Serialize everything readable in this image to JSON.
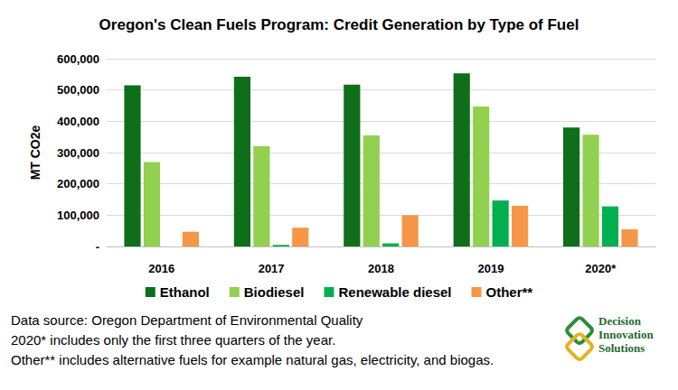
{
  "chart_data": {
    "type": "bar",
    "title": "Oregon's Clean Fuels Program: Credit Generation by Type of Fuel",
    "y_label": "MT CO2e",
    "categories": [
      "2016",
      "2017",
      "2018",
      "2019",
      "2020*"
    ],
    "series": [
      {
        "name": "Ethanol",
        "color": "#0f6e1a",
        "values": [
          515000,
          542000,
          517000,
          553000,
          380000
        ]
      },
      {
        "name": "Biodiesel",
        "color": "#92d050",
        "values": [
          270000,
          320000,
          355000,
          447000,
          357000
        ]
      },
      {
        "name": "Renewable diesel",
        "color": "#00b050",
        "values": [
          0,
          5000,
          10000,
          147000,
          128000
        ]
      },
      {
        "name": "Other**",
        "color": "#f79646",
        "values": [
          47000,
          60000,
          100000,
          130000,
          55000
        ]
      }
    ],
    "ylim": [
      0,
      600000
    ],
    "yticks": [
      {
        "value": 0,
        "label": "-"
      },
      {
        "value": 100000,
        "label": "100,000"
      },
      {
        "value": 200000,
        "label": "200,000"
      },
      {
        "value": 300000,
        "label": "300,000"
      },
      {
        "value": 400000,
        "label": "400,000"
      },
      {
        "value": 500000,
        "label": "500,000"
      },
      {
        "value": 600000,
        "label": "600,000"
      }
    ],
    "grid": true,
    "legend": "bottom",
    "notes": [
      "Data source: Oregon Department of Environmental Quality",
      "2020* includes only the first three quarters of the year.",
      "Other** includes alternative fuels for example natural gas, electricity, and biogas."
    ],
    "logo_text": [
      "Decision",
      "Innovation",
      "Solutions"
    ]
  }
}
